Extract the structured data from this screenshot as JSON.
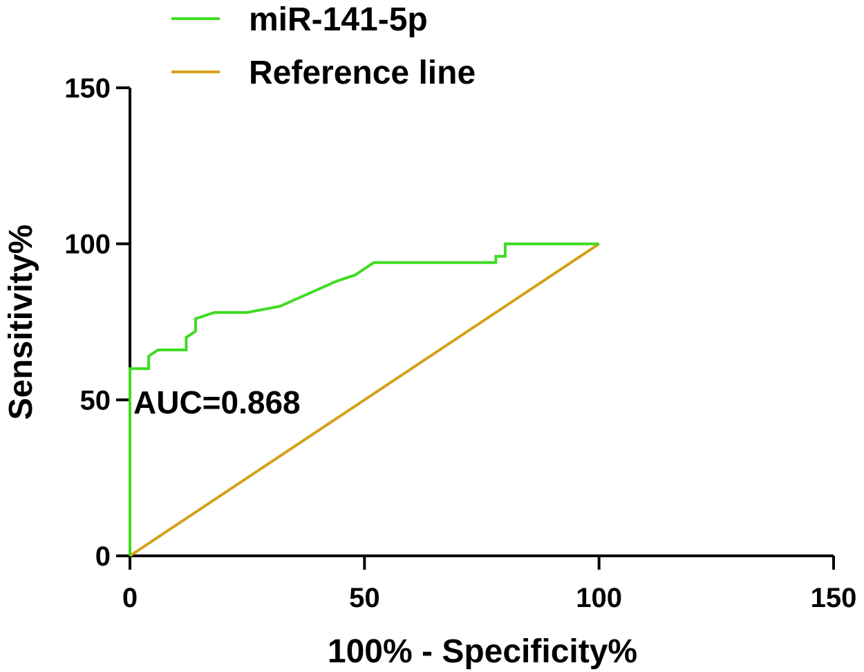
{
  "chart_data": {
    "type": "line",
    "xlabel": "100% - Specificity%",
    "ylabel": "Sensitivity%",
    "xlim": [
      0,
      150
    ],
    "ylim": [
      0,
      150
    ],
    "x_ticks": [
      "0",
      "50",
      "100",
      "150"
    ],
    "y_ticks": [
      "0",
      "50",
      "100",
      "150"
    ],
    "grid": false,
    "legend_position": "top-center",
    "annotation": "AUC=0.868",
    "series": [
      {
        "name": "miR-141-5p",
        "color": "#3fdc22",
        "x": [
          0,
          0,
          4,
          4,
          6,
          12,
          12,
          14,
          14,
          18,
          25,
          32,
          38,
          44,
          48,
          52,
          78,
          78,
          80,
          80,
          100
        ],
        "y": [
          0,
          60,
          60,
          64,
          66,
          66,
          70,
          72,
          76,
          78,
          78,
          80,
          84,
          88,
          90,
          94,
          94,
          96,
          96,
          100,
          100
        ]
      },
      {
        "name": "Reference line",
        "color": "#d4a017",
        "x": [
          0,
          100
        ],
        "y": [
          0,
          100
        ]
      }
    ]
  }
}
